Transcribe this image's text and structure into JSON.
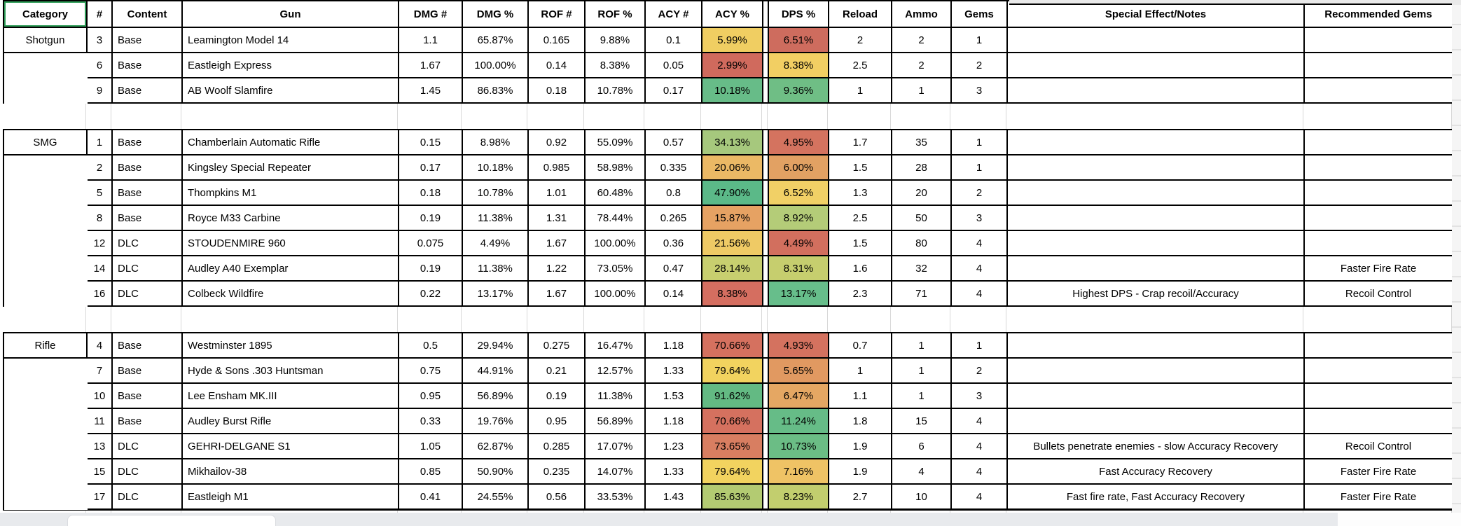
{
  "sheet": {
    "selected_cell": "Category",
    "columns": [
      {
        "key": "category",
        "label": "Category"
      },
      {
        "key": "num",
        "label": "#"
      },
      {
        "key": "content",
        "label": "Content"
      },
      {
        "key": "gun",
        "label": "Gun"
      },
      {
        "key": "dmg_num",
        "label": "DMG #"
      },
      {
        "key": "dmg_pct",
        "label": "DMG %"
      },
      {
        "key": "rof_num",
        "label": "ROF #"
      },
      {
        "key": "rof_pct",
        "label": "ROF %"
      },
      {
        "key": "acy_num",
        "label": "ACY #"
      },
      {
        "key": "acy_pct",
        "label": "ACY %"
      },
      {
        "key": "gap",
        "label": ""
      },
      {
        "key": "dps_pct",
        "label": "DPS %"
      },
      {
        "key": "reload",
        "label": "Reload"
      },
      {
        "key": "ammo",
        "label": "Ammo"
      },
      {
        "key": "gems",
        "label": "Gems"
      },
      {
        "key": "notes",
        "label": "Special Effect/Notes"
      },
      {
        "key": "rec_gems",
        "label": "Recommended Gems"
      }
    ],
    "colors": {
      "border": "#000000",
      "selection_green": "#2E9D58",
      "gridline": "#D8D8D8",
      "chrome_gray": "#E8EAED"
    },
    "sections": [
      {
        "category": "Shotgun",
        "rows": [
          {
            "num": "3",
            "content": "Base",
            "gun": "Leamington Model 14",
            "dmg_num": "1.1",
            "dmg_pct": "65.87%",
            "rof_num": "0.165",
            "rof_pct": "9.88%",
            "acy_num": "0.1",
            "acy_pct": "5.99%",
            "acy_bg": "#F0CE62",
            "dps_pct": "6.51%",
            "dps_bg": "#CE6C5E",
            "reload": "2",
            "ammo": "2",
            "gems": "1",
            "notes": "",
            "rec_gems": ""
          },
          {
            "num": "6",
            "content": "Base",
            "gun": "Eastleigh Express",
            "dmg_num": "1.67",
            "dmg_pct": "100.00%",
            "rof_num": "0.14",
            "rof_pct": "8.38%",
            "acy_num": "0.05",
            "acy_pct": "2.99%",
            "acy_bg": "#D06A5D",
            "dps_pct": "8.38%",
            "dps_bg": "#F2CF63",
            "reload": "2.5",
            "ammo": "2",
            "gems": "2",
            "notes": "",
            "rec_gems": ""
          },
          {
            "num": "9",
            "content": "Base",
            "gun": "AB Woolf Slamfire",
            "dmg_num": "1.45",
            "dmg_pct": "86.83%",
            "rof_num": "0.18",
            "rof_pct": "10.78%",
            "acy_num": "0.17",
            "acy_pct": "10.18%",
            "acy_bg": "#67BC88",
            "dps_pct": "9.36%",
            "dps_bg": "#6FBE85",
            "reload": "1",
            "ammo": "1",
            "gems": "3",
            "notes": "",
            "rec_gems": ""
          }
        ]
      },
      {
        "category": "SMG",
        "rows": [
          {
            "num": "1",
            "content": "Base",
            "gun": "Chamberlain Automatic Rifle",
            "dmg_num": "0.15",
            "dmg_pct": "8.98%",
            "rof_num": "0.92",
            "rof_pct": "55.09%",
            "acy_num": "0.57",
            "acy_pct": "34.13%",
            "acy_bg": "#A6C87D",
            "dps_pct": "4.95%",
            "dps_bg": "#D4735F",
            "reload": "1.7",
            "ammo": "35",
            "gems": "1",
            "notes": "",
            "rec_gems": ""
          },
          {
            "num": "2",
            "content": "Base",
            "gun": "Kingsley Special Repeater",
            "dmg_num": "0.17",
            "dmg_pct": "10.18%",
            "rof_num": "0.985",
            "rof_pct": "58.98%",
            "acy_num": "0.335",
            "acy_pct": "20.06%",
            "acy_bg": "#EBB965",
            "dps_pct": "6.00%",
            "dps_bg": "#E2A163",
            "reload": "1.5",
            "ammo": "28",
            "gems": "1",
            "notes": "",
            "rec_gems": ""
          },
          {
            "num": "5",
            "content": "Base",
            "gun": "Thompkins M1",
            "dmg_num": "0.18",
            "dmg_pct": "10.78%",
            "rof_num": "1.01",
            "rof_pct": "60.48%",
            "acy_num": "0.8",
            "acy_pct": "47.90%",
            "acy_bg": "#5BB988",
            "dps_pct": "6.52%",
            "dps_bg": "#F1D066",
            "reload": "1.3",
            "ammo": "20",
            "gems": "2",
            "notes": "",
            "rec_gems": ""
          },
          {
            "num": "8",
            "content": "Base",
            "gun": "Royce M33 Carbine",
            "dmg_num": "0.19",
            "dmg_pct": "11.38%",
            "rof_num": "1.31",
            "rof_pct": "78.44%",
            "acy_num": "0.265",
            "acy_pct": "15.87%",
            "acy_bg": "#E6A263",
            "dps_pct": "8.92%",
            "dps_bg": "#B4CC78",
            "reload": "2.5",
            "ammo": "50",
            "gems": "3",
            "notes": "",
            "rec_gems": ""
          },
          {
            "num": "12",
            "content": "DLC",
            "gun": "STOUDENMIRE 960",
            "dmg_num": "0.075",
            "dmg_pct": "4.49%",
            "rof_num": "1.67",
            "rof_pct": "100.00%",
            "acy_num": "0.36",
            "acy_pct": "21.56%",
            "acy_bg": "#EFCA65",
            "dps_pct": "4.49%",
            "dps_bg": "#D26F5E",
            "reload": "1.5",
            "ammo": "80",
            "gems": "4",
            "notes": "",
            "rec_gems": ""
          },
          {
            "num": "14",
            "content": "DLC",
            "gun": "Audley A40 Exemplar",
            "dmg_num": "0.19",
            "dmg_pct": "11.38%",
            "rof_num": "1.22",
            "rof_pct": "73.05%",
            "acy_num": "0.47",
            "acy_pct": "28.14%",
            "acy_bg": "#C8CF6F",
            "dps_pct": "8.31%",
            "dps_bg": "#C6CE6E",
            "reload": "1.6",
            "ammo": "32",
            "gems": "4",
            "notes": "",
            "rec_gems": "Faster Fire Rate"
          },
          {
            "num": "16",
            "content": "DLC",
            "gun": "Colbeck Wildfire",
            "dmg_num": "0.22",
            "dmg_pct": "13.17%",
            "rof_num": "1.67",
            "rof_pct": "100.00%",
            "acy_num": "0.14",
            "acy_pct": "8.38%",
            "acy_bg": "#D56E60",
            "dps_pct": "13.17%",
            "dps_bg": "#67BE8B",
            "reload": "2.3",
            "ammo": "71",
            "gems": "4",
            "notes": "Highest DPS - Crap recoil/Accuracy",
            "rec_gems": "Recoil Control"
          }
        ]
      },
      {
        "category": "Rifle",
        "rows": [
          {
            "num": "4",
            "content": "Base",
            "gun": "Westminster 1895",
            "dmg_num": "0.5",
            "dmg_pct": "29.94%",
            "rof_num": "0.275",
            "rof_pct": "16.47%",
            "acy_num": "1.18",
            "acy_pct": "70.66%",
            "acy_bg": "#D5715F",
            "dps_pct": "4.93%",
            "dps_bg": "#D4725F",
            "reload": "0.7",
            "ammo": "1",
            "gems": "1",
            "notes": "",
            "rec_gems": ""
          },
          {
            "num": "7",
            "content": "Base",
            "gun": "Hyde & Sons .303 Huntsman",
            "dmg_num": "0.75",
            "dmg_pct": "44.91%",
            "rof_num": "0.21",
            "rof_pct": "12.57%",
            "acy_num": "1.33",
            "acy_pct": "79.64%",
            "acy_bg": "#F2D35F",
            "dps_pct": "5.65%",
            "dps_bg": "#E19961",
            "reload": "1",
            "ammo": "1",
            "gems": "2",
            "notes": "",
            "rec_gems": ""
          },
          {
            "num": "10",
            "content": "Base",
            "gun": "Lee Ensham MK.III",
            "dmg_num": "0.95",
            "dmg_pct": "56.89%",
            "rof_num": "0.19",
            "rof_pct": "11.38%",
            "acy_num": "1.53",
            "acy_pct": "91.62%",
            "acy_bg": "#63BA83",
            "dps_pct": "6.47%",
            "dps_bg": "#E5A763",
            "reload": "1.1",
            "ammo": "1",
            "gems": "3",
            "notes": "",
            "rec_gems": ""
          },
          {
            "num": "11",
            "content": "Base",
            "gun": "Audley Burst Rifle",
            "dmg_num": "0.33",
            "dmg_pct": "19.76%",
            "rof_num": "0.95",
            "rof_pct": "56.89%",
            "acy_num": "1.18",
            "acy_pct": "70.66%",
            "acy_bg": "#D5715F",
            "dps_pct": "11.24%",
            "dps_bg": "#66BC87",
            "reload": "1.8",
            "ammo": "15",
            "gems": "4",
            "notes": "",
            "rec_gems": ""
          },
          {
            "num": "13",
            "content": "DLC",
            "gun": "GEHRI-DELGANE S1",
            "dmg_num": "1.05",
            "dmg_pct": "62.87%",
            "rof_num": "0.285",
            "rof_pct": "17.07%",
            "acy_num": "1.23",
            "acy_pct": "73.65%",
            "acy_bg": "#D87E61",
            "dps_pct": "10.73%",
            "dps_bg": "#6BBD85",
            "reload": "1.9",
            "ammo": "6",
            "gems": "4",
            "notes": "Bullets penetrate enemies - slow Accuracy Recovery",
            "rec_gems": "Recoil Control"
          },
          {
            "num": "15",
            "content": "DLC",
            "gun": "Mikhailov-38",
            "dmg_num": "0.85",
            "dmg_pct": "50.90%",
            "rof_num": "0.235",
            "rof_pct": "14.07%",
            "acy_num": "1.33",
            "acy_pct": "79.64%",
            "acy_bg": "#F2D35F",
            "dps_pct": "7.16%",
            "dps_bg": "#EFC365",
            "reload": "1.9",
            "ammo": "4",
            "gems": "4",
            "notes": "Fast Accuracy Recovery",
            "rec_gems": "Faster Fire Rate"
          },
          {
            "num": "17",
            "content": "DLC",
            "gun": "Eastleigh M1",
            "dmg_num": "0.41",
            "dmg_pct": "24.55%",
            "rof_num": "0.56",
            "rof_pct": "33.53%",
            "acy_num": "1.43",
            "acy_pct": "85.63%",
            "acy_bg": "#B3CB72",
            "dps_pct": "8.23%",
            "dps_bg": "#C2CE6E",
            "reload": "2.7",
            "ammo": "10",
            "gems": "4",
            "notes": "Fast fire rate, Fast Accuracy Recovery",
            "rec_gems": "Faster Fire Rate"
          }
        ]
      }
    ]
  }
}
